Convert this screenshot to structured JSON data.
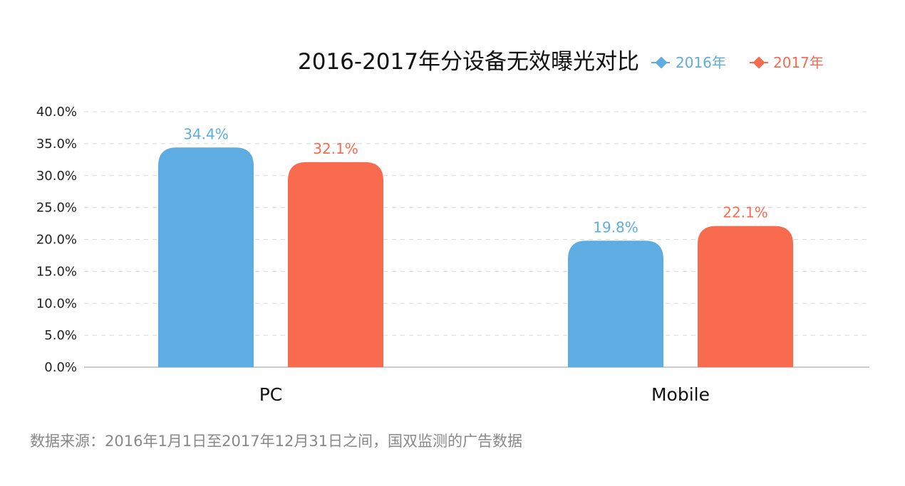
{
  "chart_data": {
    "type": "bar",
    "title": "2016-2017年分设备无效曝光对比",
    "categories": [
      "PC",
      "Mobile"
    ],
    "series": [
      {
        "name": "2016年",
        "values": [
          34.4,
          19.8
        ],
        "labels": [
          "34.4%",
          "19.8%"
        ],
        "color": "#5DADE2"
      },
      {
        "name": "2017年",
        "values": [
          32.1,
          22.1
        ],
        "labels": [
          "32.1%",
          "22.1%"
        ],
        "color": "#F96B4F"
      }
    ],
    "y_ticks": [
      "0.0%",
      "5.0%",
      "10.0%",
      "15.0%",
      "20.0%",
      "25.0%",
      "30.0%",
      "35.0%",
      "40.0%"
    ],
    "ylim": [
      0,
      40
    ],
    "xlabel": "",
    "ylabel": "",
    "grid": true,
    "legend_position": "top-right"
  },
  "source_note": "数据来源：2016年1月1日至2017年12月31日之间，国双监测的广告数据"
}
